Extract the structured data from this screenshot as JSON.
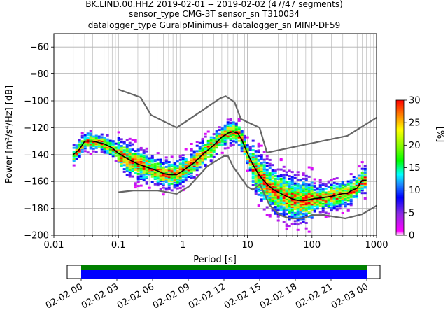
{
  "title_lines": [
    "BK.LIND.00.HHZ   2019-02-01 -- 2019-02-02  (47/47 segments)",
    "sensor_type CMG-3T sensor_sn T310034",
    "datalogger_type GuralpMinimus+ datalogger_sn MINP-DF59"
  ],
  "chart_data": {
    "type": "heatmap",
    "xlabel": "Period [s]",
    "ylabel": "Power [m²/s⁴/Hz] [dB]",
    "x_scale": "log",
    "xlim": [
      0.01,
      1000
    ],
    "ylim": [
      -200,
      -50
    ],
    "x_ticks": [
      0.01,
      0.1,
      1,
      10,
      100,
      1000
    ],
    "x_tick_labels": [
      "0.01",
      "0.1",
      "1",
      "10",
      "100",
      "1000"
    ],
    "y_ticks": [
      -200,
      -180,
      -160,
      -140,
      -120,
      -100,
      -80,
      -60
    ],
    "y_tick_labels": [
      "−200",
      "−180",
      "−160",
      "−140",
      "−120",
      "−100",
      "−80",
      "−60"
    ],
    "grid": true,
    "colorbar": {
      "label": "[%]",
      "range": [
        0,
        30
      ],
      "ticks": [
        0,
        5,
        10,
        15,
        20,
        25,
        30
      ],
      "tick_labels": [
        "0",
        "5",
        "10",
        "15",
        "20",
        "25",
        "30"
      ]
    },
    "nhnm": {
      "name": "NHNM",
      "x": [
        0.1,
        0.22,
        0.32,
        0.8,
        3.8,
        4.6,
        6.3,
        7.9,
        15.4,
        20,
        354.8,
        1000
      ],
      "y": [
        -91.5,
        -97.4,
        -110.5,
        -120,
        -98,
        -96.5,
        -101,
        -113.5,
        -120,
        -138.5,
        -126,
        -112.5
      ]
    },
    "nlnm": {
      "name": "NLNM",
      "x": [
        0.1,
        0.17,
        0.4,
        0.8,
        1.24,
        2.4,
        4.3,
        5,
        6,
        10,
        12,
        15.6,
        21.9,
        31.6,
        45,
        70,
        101,
        154,
        328,
        600,
        1000
      ],
      "y": [
        -168,
        -166.7,
        -166.7,
        -169.2,
        -163.7,
        -148.6,
        -141.1,
        -141.1,
        -149,
        -163.8,
        -166.2,
        -162.1,
        -177.5,
        -185,
        -187.5,
        -187.5,
        -185,
        -185,
        -187.5,
        -184.4,
        -178
      ]
    },
    "mean_psd": {
      "x": [
        0.02,
        0.025,
        0.03,
        0.04,
        0.06,
        0.08,
        0.1,
        0.15,
        0.2,
        0.3,
        0.4,
        0.5,
        0.6,
        0.8,
        1,
        1.5,
        2,
        3,
        4,
        5,
        6,
        7,
        8,
        10,
        12,
        15,
        20,
        25,
        30,
        40,
        50,
        60,
        80,
        100,
        150,
        200,
        300,
        350,
        400,
        500,
        600,
        700
      ],
      "y": [
        -140,
        -136,
        -130,
        -130,
        -132,
        -135,
        -139,
        -144,
        -147,
        -150,
        -152,
        -154,
        -155,
        -155,
        -152,
        -146,
        -140,
        -133,
        -127,
        -124,
        -123,
        -124,
        -128,
        -139,
        -147,
        -155,
        -162,
        -166,
        -168,
        -171,
        -173,
        -174,
        -174,
        -173,
        -172,
        -171,
        -169,
        -169,
        -167,
        -165,
        -159,
        -159
      ]
    },
    "time_axis": {
      "tick_labels": [
        "02-02 00",
        "02-02 03",
        "02-02 06",
        "02-02 09",
        "02-02 12",
        "02-02 15",
        "02-02 18",
        "02-02 21",
        "02-03 00"
      ],
      "coverage_colors": [
        "#008000",
        "#0000ff"
      ]
    }
  }
}
